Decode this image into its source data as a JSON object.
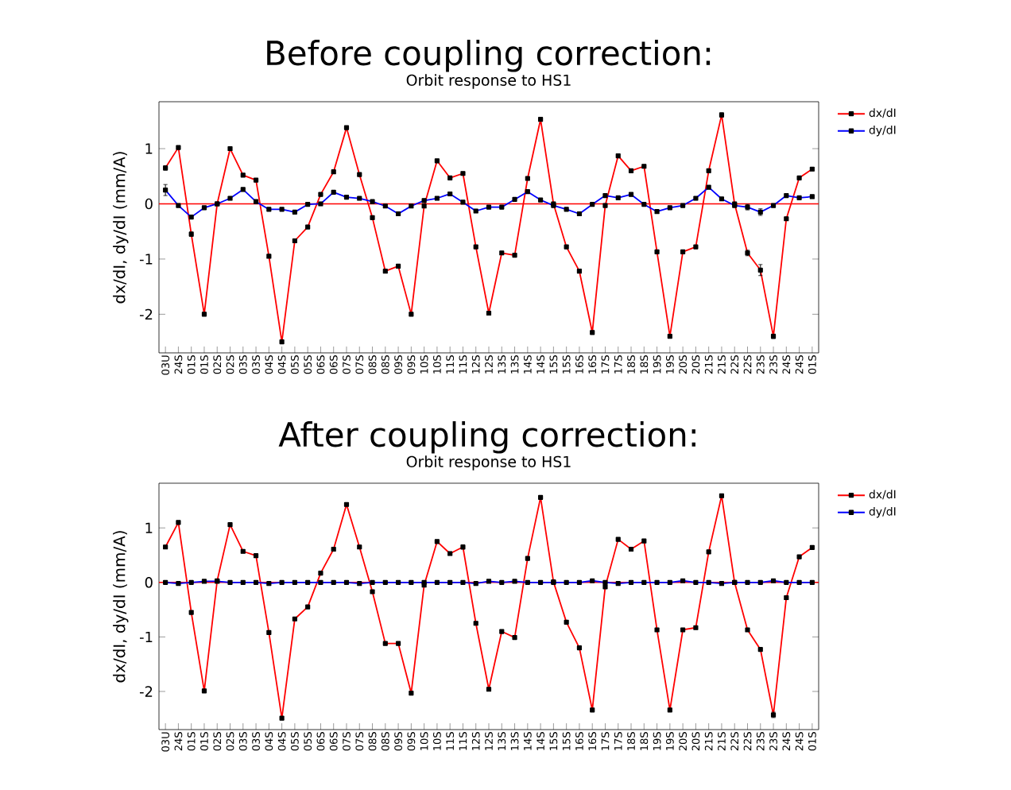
{
  "chart_data": [
    {
      "type": "line",
      "title": "Before coupling correction:",
      "subtitle": "Orbit response to HS1",
      "ylabel": "dx/dI, dy/dI (mm/A)",
      "categories": [
        "03U",
        "24S",
        "01S",
        "01S",
        "02S",
        "02S",
        "03S",
        "03S",
        "04S",
        "04S",
        "05S",
        "05S",
        "06S",
        "06S",
        "07S",
        "07S",
        "08S",
        "08S",
        "09S",
        "09S",
        "10S",
        "10S",
        "11S",
        "11S",
        "12S",
        "12S",
        "13S",
        "13S",
        "14S",
        "14S",
        "15S",
        "15S",
        "16S",
        "16S",
        "17S",
        "17S",
        "18S",
        "18S",
        "19S",
        "19S",
        "20S",
        "20S",
        "21S",
        "21S",
        "22S",
        "22S",
        "23S",
        "23S",
        "24S",
        "24S",
        "01S"
      ],
      "series": [
        {
          "name": "dx/dI",
          "color": "#ff0000",
          "values": [
            0.65,
            1.02,
            -0.55,
            -2.0,
            0.0,
            1.0,
            0.52,
            0.43,
            -0.95,
            -2.5,
            -0.67,
            -0.42,
            0.17,
            0.58,
            1.38,
            0.53,
            -0.25,
            -1.22,
            -1.13,
            -2.0,
            -0.04,
            0.78,
            0.47,
            0.55,
            -0.78,
            -1.98,
            -0.89,
            -0.93,
            0.46,
            1.53,
            0.0,
            -0.78,
            -1.22,
            -2.33,
            -0.03,
            0.87,
            0.6,
            0.68,
            -0.87,
            -2.4,
            -0.87,
            -0.78,
            0.6,
            1.61,
            0.0,
            -0.89,
            -1.2,
            -2.4,
            -0.27,
            0.47,
            0.63
          ],
          "errors": [
            0.04,
            0.03,
            0.04,
            0.03,
            0.03,
            0.03,
            0.03,
            0.03,
            0.03,
            0.03,
            0.03,
            0.03,
            0.03,
            0.03,
            0.03,
            0.03,
            0.03,
            0.03,
            0.03,
            0.03,
            0.03,
            0.03,
            0.03,
            0.03,
            0.03,
            0.03,
            0.03,
            0.03,
            0.03,
            0.03,
            0.03,
            0.03,
            0.03,
            0.03,
            0.03,
            0.03,
            0.03,
            0.03,
            0.03,
            0.03,
            0.03,
            0.03,
            0.03,
            0.04,
            0.03,
            0.05,
            0.1,
            0.04,
            0.03,
            0.03,
            0.03
          ]
        },
        {
          "name": "dy/dI",
          "color": "#0000ff",
          "values": [
            0.25,
            -0.03,
            -0.24,
            -0.07,
            0.0,
            0.1,
            0.26,
            0.04,
            -0.1,
            -0.1,
            -0.15,
            -0.01,
            0.0,
            0.21,
            0.12,
            0.1,
            0.04,
            -0.04,
            -0.18,
            -0.04,
            0.06,
            0.1,
            0.18,
            0.03,
            -0.13,
            -0.06,
            -0.06,
            0.08,
            0.22,
            0.07,
            -0.03,
            -0.1,
            -0.18,
            -0.01,
            0.15,
            0.11,
            0.17,
            -0.01,
            -0.14,
            -0.07,
            -0.03,
            0.1,
            0.3,
            0.09,
            -0.03,
            -0.06,
            -0.15,
            -0.03,
            0.15,
            0.11,
            0.13
          ],
          "errors": [
            0.1,
            0.03,
            0.03,
            0.03,
            0.03,
            0.03,
            0.03,
            0.03,
            0.03,
            0.03,
            0.03,
            0.03,
            0.03,
            0.03,
            0.03,
            0.03,
            0.03,
            0.03,
            0.03,
            0.03,
            0.03,
            0.03,
            0.03,
            0.03,
            0.03,
            0.03,
            0.03,
            0.03,
            0.03,
            0.03,
            0.03,
            0.03,
            0.03,
            0.03,
            0.03,
            0.03,
            0.03,
            0.03,
            0.03,
            0.03,
            0.03,
            0.03,
            0.03,
            0.03,
            0.03,
            0.05,
            0.06,
            0.03,
            0.03,
            0.03,
            0.03
          ]
        }
      ],
      "ylim": [
        -2.7,
        1.85
      ],
      "yticks": [
        -2,
        -1,
        0,
        1
      ],
      "ref_lines": [
        {
          "axis": "y",
          "value": 0,
          "color": "#ff0000"
        }
      ],
      "legend": "top right",
      "marker": "square"
    },
    {
      "type": "line",
      "title": "After coupling correction:",
      "subtitle": "Orbit response to HS1",
      "ylabel": "dx/dI, dy/dI (mm/A)",
      "categories": [
        "03U",
        "24S",
        "01S",
        "01S",
        "02S",
        "02S",
        "03S",
        "03S",
        "04S",
        "04S",
        "05S",
        "05S",
        "06S",
        "06S",
        "07S",
        "07S",
        "08S",
        "08S",
        "09S",
        "09S",
        "10S",
        "10S",
        "11S",
        "11S",
        "12S",
        "12S",
        "13S",
        "13S",
        "14S",
        "14S",
        "15S",
        "15S",
        "16S",
        "16S",
        "17S",
        "17S",
        "18S",
        "18S",
        "19S",
        "19S",
        "20S",
        "20S",
        "21S",
        "21S",
        "22S",
        "22S",
        "23S",
        "23S",
        "24S",
        "24S",
        "01S"
      ],
      "series": [
        {
          "name": "dx/dI",
          "color": "#ff0000",
          "values": [
            0.65,
            1.1,
            -0.55,
            -1.99,
            0.03,
            1.06,
            0.57,
            0.49,
            -0.92,
            -2.49,
            -0.67,
            -0.45,
            0.17,
            0.61,
            1.43,
            0.65,
            -0.17,
            -1.12,
            -1.12,
            -2.03,
            -0.05,
            0.75,
            0.53,
            0.65,
            -0.75,
            -1.96,
            -0.9,
            -1.01,
            0.44,
            1.56,
            0.01,
            -0.73,
            -1.2,
            -2.34,
            -0.08,
            0.79,
            0.61,
            0.76,
            -0.87,
            -2.34,
            -0.87,
            -0.83,
            0.56,
            1.59,
            0.0,
            -0.87,
            -1.23,
            -2.43,
            -0.28,
            0.47,
            0.64
          ],
          "errors": [
            0.03,
            0.03,
            0.03,
            0.03,
            0.03,
            0.03,
            0.03,
            0.03,
            0.03,
            0.03,
            0.03,
            0.03,
            0.03,
            0.03,
            0.03,
            0.03,
            0.03,
            0.03,
            0.03,
            0.03,
            0.03,
            0.03,
            0.03,
            0.04,
            0.03,
            0.03,
            0.03,
            0.03,
            0.03,
            0.03,
            0.03,
            0.03,
            0.03,
            0.03,
            0.03,
            0.03,
            0.03,
            0.03,
            0.03,
            0.03,
            0.03,
            0.03,
            0.03,
            0.03,
            0.03,
            0.03,
            0.03,
            0.05,
            0.03,
            0.03,
            0.03
          ]
        },
        {
          "name": "dy/dI",
          "color": "#0000ff",
          "values": [
            0.0,
            -0.02,
            0.0,
            0.02,
            0.02,
            0.0,
            0.0,
            0.0,
            -0.02,
            0.0,
            0.0,
            0.0,
            0.0,
            0.0,
            0.0,
            -0.02,
            0.0,
            0.0,
            0.0,
            0.0,
            0.0,
            0.0,
            0.0,
            0.0,
            -0.02,
            0.02,
            0.0,
            0.02,
            0.0,
            0.0,
            0.0,
            0.0,
            0.0,
            0.03,
            0.0,
            -0.02,
            0.0,
            0.0,
            0.0,
            0.0,
            0.03,
            0.0,
            0.0,
            -0.02,
            0.0,
            0.0,
            0.0,
            0.03,
            0.0,
            0.0,
            0.0
          ],
          "errors": [
            0.02,
            0.02,
            0.02,
            0.02,
            0.02,
            0.02,
            0.02,
            0.02,
            0.02,
            0.02,
            0.02,
            0.02,
            0.02,
            0.02,
            0.02,
            0.02,
            0.02,
            0.02,
            0.02,
            0.02,
            0.02,
            0.02,
            0.02,
            0.02,
            0.02,
            0.02,
            0.02,
            0.02,
            0.02,
            0.02,
            0.02,
            0.02,
            0.02,
            0.02,
            0.02,
            0.02,
            0.02,
            0.02,
            0.02,
            0.02,
            0.02,
            0.02,
            0.02,
            0.02,
            0.02,
            0.02,
            0.02,
            0.02,
            0.02,
            0.02,
            0.02
          ]
        }
      ],
      "ylim": [
        -2.7,
        1.82
      ],
      "yticks": [
        -2,
        -1,
        0,
        1
      ],
      "ref_lines": [
        {
          "axis": "y",
          "value": 0,
          "color": "#ff0000"
        }
      ],
      "legend": "top right",
      "marker": "square"
    }
  ]
}
